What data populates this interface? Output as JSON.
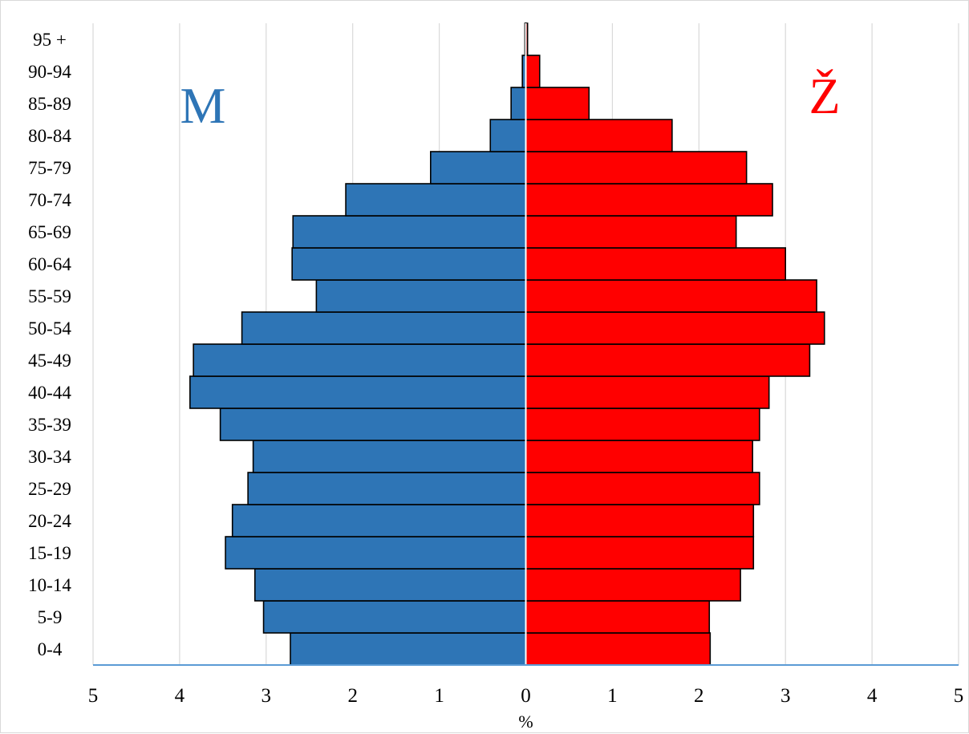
{
  "chart_data": {
    "type": "bar",
    "orientation": "horizontal",
    "categories": [
      "0-4",
      "5-9",
      "10-14",
      "15-19",
      "20-24",
      "25-29",
      "30-34",
      "35-39",
      "40-44",
      "45-49",
      "50-54",
      "55-59",
      "60-64",
      "65-69",
      "70-74",
      "75-79",
      "80-84",
      "85-89",
      "90-94",
      "95 +"
    ],
    "series": [
      {
        "name": "M",
        "color": "#2e75b6",
        "values": [
          2.72,
          3.03,
          3.13,
          3.47,
          3.39,
          3.21,
          3.15,
          3.53,
          3.88,
          3.84,
          3.28,
          2.42,
          2.7,
          2.69,
          2.08,
          1.1,
          0.41,
          0.17,
          0.04,
          0.01
        ]
      },
      {
        "name": "Ž",
        "color": "#ff0000",
        "values": [
          2.13,
          2.12,
          2.48,
          2.63,
          2.63,
          2.7,
          2.62,
          2.7,
          2.81,
          3.28,
          3.45,
          3.36,
          3.0,
          2.43,
          2.85,
          2.55,
          1.69,
          0.73,
          0.16,
          0.02
        ]
      }
    ],
    "xlabel": "%",
    "xlim": [
      -5,
      5
    ],
    "x_ticks": [
      "5",
      "4",
      "3",
      "2",
      "1",
      "0",
      "1",
      "2",
      "3",
      "4",
      "5"
    ],
    "grid": true,
    "legend": "none"
  }
}
